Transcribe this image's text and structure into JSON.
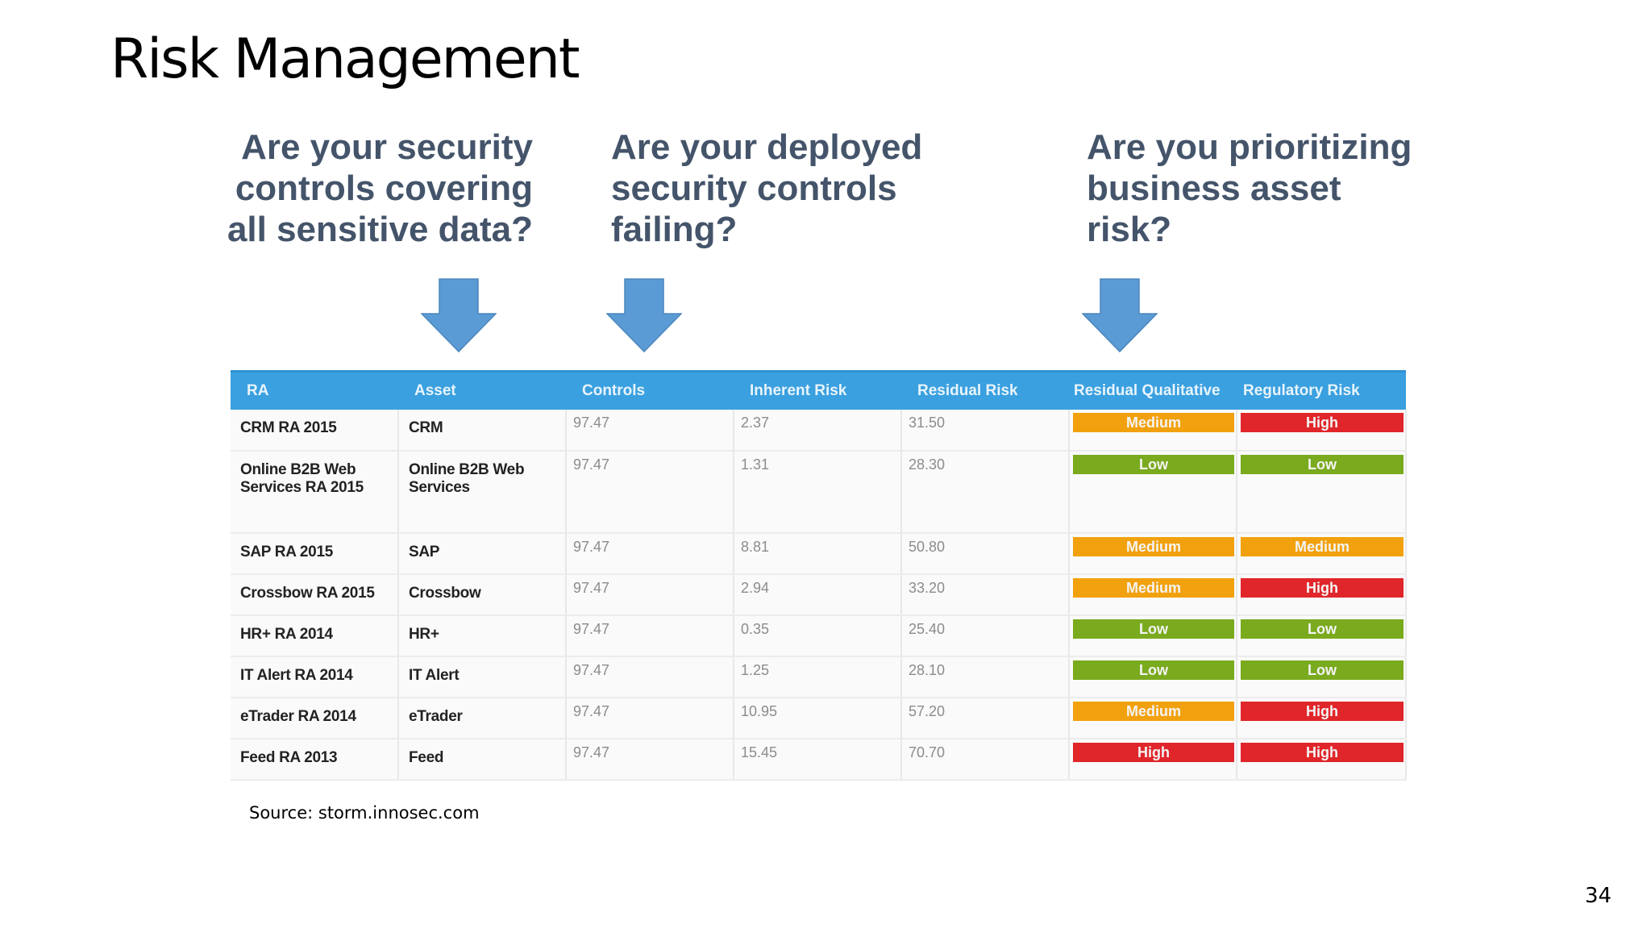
{
  "slide": {
    "title": "Risk Management",
    "page_number": "34",
    "source": "Source: storm.innosec.com"
  },
  "questions": [
    {
      "lines": [
        "Are your security",
        "controls covering",
        "all sensitive data?"
      ]
    },
    {
      "lines": [
        "Are your deployed",
        "security controls",
        "failing?"
      ]
    },
    {
      "lines": [
        "Are you prioritizing",
        "business asset",
        "risk?"
      ]
    }
  ],
  "table": {
    "columns": [
      "RA",
      "Asset",
      "Controls",
      "Inherent Risk",
      "Residual Risk",
      "Residual Qualitative",
      "Regulatory Risk"
    ],
    "rows": [
      {
        "ra": "CRM RA 2015",
        "asset": "CRM",
        "controls": "97.47",
        "inherent": "2.37",
        "residual": "31.50",
        "qualitative": "Medium",
        "regulatory": "High"
      },
      {
        "ra": "Online B2B Web Services RA 2015",
        "asset": "Online B2B Web Services",
        "controls": "97.47",
        "inherent": "1.31",
        "residual": "28.30",
        "qualitative": "Low",
        "regulatory": "Low"
      },
      {
        "ra": "SAP RA 2015",
        "asset": "SAP",
        "controls": "97.47",
        "inherent": "8.81",
        "residual": "50.80",
        "qualitative": "Medium",
        "regulatory": "Medium"
      },
      {
        "ra": "Crossbow RA 2015",
        "asset": "Crossbow",
        "controls": "97.47",
        "inherent": "2.94",
        "residual": "33.20",
        "qualitative": "Medium",
        "regulatory": "High"
      },
      {
        "ra": "HR+ RA 2014",
        "asset": "HR+",
        "controls": "97.47",
        "inherent": "0.35",
        "residual": "25.40",
        "qualitative": "Low",
        "regulatory": "Low"
      },
      {
        "ra": "IT Alert RA 2014",
        "asset": "IT Alert",
        "controls": "97.47",
        "inherent": "1.25",
        "residual": "28.10",
        "qualitative": "Low",
        "regulatory": "Low"
      },
      {
        "ra": "eTrader RA 2014",
        "asset": "eTrader",
        "controls": "97.47",
        "inherent": "10.95",
        "residual": "57.20",
        "qualitative": "Medium",
        "regulatory": "High"
      },
      {
        "ra": "Feed RA 2013",
        "asset": "Feed",
        "controls": "97.47",
        "inherent": "15.45",
        "residual": "70.70",
        "qualitative": "High",
        "regulatory": "High"
      }
    ]
  },
  "colors": {
    "question_text": "#44546a",
    "arrow": "#5b9bd5",
    "header": "#3aa0e0",
    "low": "#7aaa1e",
    "medium": "#f2a10e",
    "high": "#e0262a"
  },
  "icons": {
    "arrow": "down-arrow-icon"
  }
}
